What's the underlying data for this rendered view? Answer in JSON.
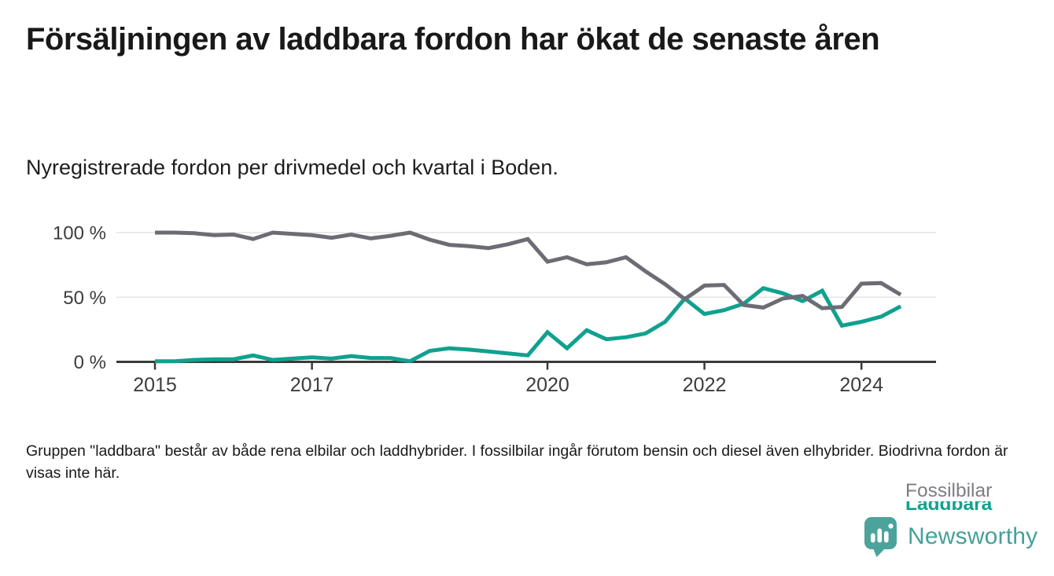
{
  "header": {
    "title": "Försäljningen av laddbara fordon har ökat de senaste åren",
    "subtitle": "Nyregistrerade fordon per drivmedel och kvartal i Boden."
  },
  "chart_data": {
    "type": "line",
    "title": "Nyregistrerade fordon per drivmedel och kvartal i Boden",
    "x_unit": "quarter",
    "categories": [
      "2015 Q1",
      "2015 Q2",
      "2015 Q3",
      "2015 Q4",
      "2016 Q1",
      "2016 Q2",
      "2016 Q3",
      "2016 Q4",
      "2017 Q1",
      "2017 Q2",
      "2017 Q3",
      "2017 Q4",
      "2018 Q1",
      "2018 Q2",
      "2018 Q3",
      "2018 Q4",
      "2019 Q1",
      "2019 Q2",
      "2019 Q3",
      "2019 Q4",
      "2020 Q1",
      "2020 Q2",
      "2020 Q3",
      "2020 Q4",
      "2021 Q1",
      "2021 Q2",
      "2021 Q3",
      "2021 Q4",
      "2022 Q1",
      "2022 Q2",
      "2022 Q3",
      "2022 Q4",
      "2023 Q1",
      "2023 Q2",
      "2023 Q3",
      "2023 Q4",
      "2024 Q1",
      "2024 Q2",
      "2024 Q3"
    ],
    "series": [
      {
        "name": "Laddbara",
        "color": "#10a18e",
        "values": [
          0.5,
          0.5,
          1.5,
          2,
          2,
          5,
          1.5,
          2.5,
          3.5,
          2.5,
          4.5,
          3,
          3,
          0.5,
          8.5,
          10.5,
          9.5,
          8,
          6.5,
          5,
          23,
          10.5,
          24.5,
          17.5,
          19,
          22,
          31,
          49,
          37,
          40,
          45,
          57,
          53,
          47,
          55,
          28,
          31,
          35,
          43
        ]
      },
      {
        "name": "Fossilbilar",
        "color": "#6c6c74",
        "values": [
          100,
          100,
          99.5,
          98,
          98.5,
          95,
          100,
          99,
          98,
          96,
          98.5,
          95.5,
          97.5,
          100,
          94.5,
          90.5,
          89.5,
          88,
          91,
          95,
          77.5,
          81,
          75.5,
          77,
          81,
          70,
          60,
          48.5,
          59,
          59.5,
          44,
          42,
          49,
          51,
          41.5,
          42.5,
          60.5,
          61,
          52
        ]
      }
    ],
    "ylim": [
      0,
      100
    ],
    "yticks": [
      {
        "value": 0,
        "label": "0 %"
      },
      {
        "value": 50,
        "label": "50 %"
      },
      {
        "value": 100,
        "label": "100 %"
      }
    ],
    "xticks": [
      {
        "index": 0,
        "label": "2015"
      },
      {
        "index": 8,
        "label": "2017"
      },
      {
        "index": 20,
        "label": "2020"
      },
      {
        "index": 28,
        "label": "2022"
      },
      {
        "index": 36,
        "label": "2024"
      }
    ],
    "grid": "horizontal",
    "legend_position": "line-end-labels",
    "colors": {
      "grid": "#e4e4e4",
      "axis": "#3a3a3a",
      "tick_label": "#3c3c3c"
    }
  },
  "footer": {
    "note": "Gruppen \"laddbara\" består av både rena elbilar och laddhybrider. I fossilbilar ingår förutom bensin och diesel även elhybrider. Biodrivna fordon är visas inte här.",
    "brand": "Newsworthy",
    "brand_color": "#45a099"
  }
}
